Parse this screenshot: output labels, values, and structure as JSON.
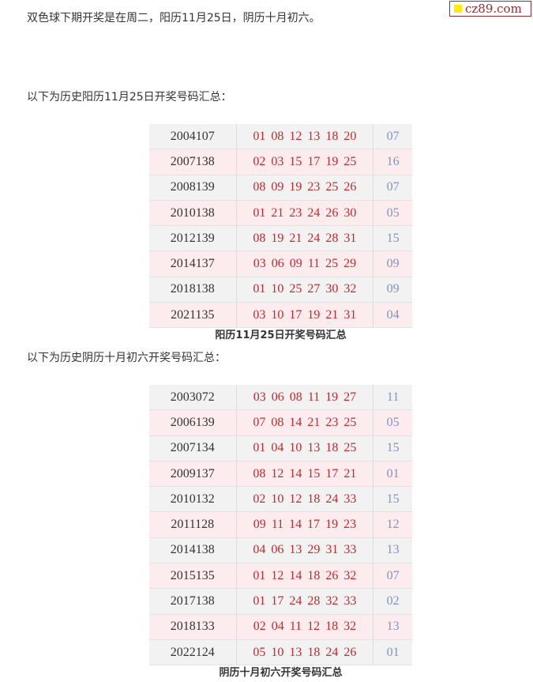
{
  "watermark": "cz89.com",
  "intro": "双色球下期开奖是在周二，阳历11月25日，阴历十月初六。",
  "section1": {
    "heading": "以下为历史阳历11月25日开奖号码汇总：",
    "caption": "阳历11月25日开奖号码汇总",
    "rows": [
      {
        "issue": "2004107",
        "red": "01 08 12 13 18 20",
        "blue": "07"
      },
      {
        "issue": "2007138",
        "red": "02 03 15 17 19 25",
        "blue": "16"
      },
      {
        "issue": "2008139",
        "red": "08 09 19 23 25 26",
        "blue": "07"
      },
      {
        "issue": "2010138",
        "red": "01 21 23 24 26 30",
        "blue": "05"
      },
      {
        "issue": "2012139",
        "red": "08 19 21 24 28 31",
        "blue": "15"
      },
      {
        "issue": "2014137",
        "red": "03 06 09 11 25 29",
        "blue": "09"
      },
      {
        "issue": "2018138",
        "red": "01 10 25 27 30 32",
        "blue": "09"
      },
      {
        "issue": "2021135",
        "red": "03 10 17 19 21 31",
        "blue": "04"
      }
    ]
  },
  "section2": {
    "heading": "以下为历史阴历十月初六开奖号码汇总：",
    "caption": "阴历十月初六开奖号码汇总",
    "rows": [
      {
        "issue": "2003072",
        "red": "03 06 08 11 19 27",
        "blue": "11"
      },
      {
        "issue": "2006139",
        "red": "07 08 14 21 23 25",
        "blue": "05"
      },
      {
        "issue": "2007134",
        "red": "01 04 10 13 18 25",
        "blue": "15"
      },
      {
        "issue": "2009137",
        "red": "08 12 14 15 17 21",
        "blue": "01"
      },
      {
        "issue": "2010132",
        "red": "02 10 12 18 24 33",
        "blue": "15"
      },
      {
        "issue": "2011128",
        "red": "09 11 14 17 19 23",
        "blue": "12"
      },
      {
        "issue": "2014138",
        "red": "04 06 13 29 31 33",
        "blue": "13"
      },
      {
        "issue": "2015135",
        "red": "01 12 14 18 26 32",
        "blue": "07"
      },
      {
        "issue": "2017138",
        "red": "01 17 24 28 32 33",
        "blue": "02"
      },
      {
        "issue": "2018133",
        "red": "02 04 11 12 18 32",
        "blue": "13"
      },
      {
        "issue": "2022124",
        "red": "05 10 13 18 24 26",
        "blue": "01"
      }
    ]
  }
}
